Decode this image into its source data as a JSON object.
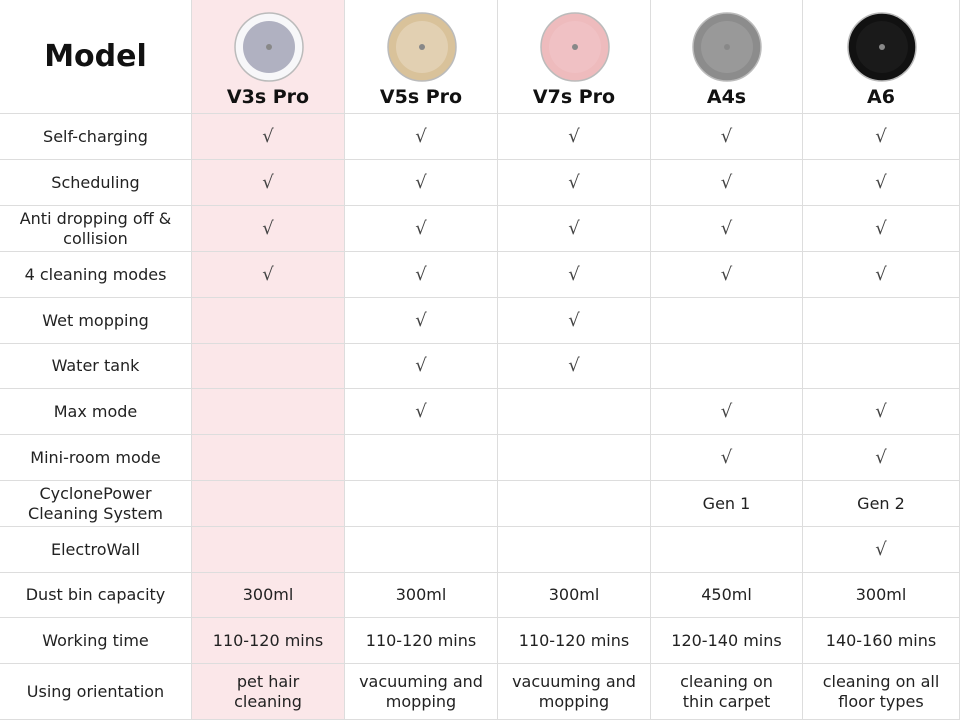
{
  "header": {
    "title": "Model",
    "models": [
      "V3s Pro",
      "V5s Pro",
      "V7s Pro",
      "A4s",
      "A6"
    ]
  },
  "table": {
    "rows": [
      {
        "label": "Self-charging",
        "cells": [
          "√",
          "√",
          "√",
          "√",
          "√"
        ]
      },
      {
        "label": "Scheduling",
        "cells": [
          "√",
          "√",
          "√",
          "√",
          "√"
        ]
      },
      {
        "label": "Anti dropping off & collision",
        "cells": [
          "√",
          "√",
          "√",
          "√",
          "√"
        ]
      },
      {
        "label": "4 cleaning modes",
        "cells": [
          "√",
          "√",
          "√",
          "√",
          "√"
        ]
      },
      {
        "label": "Wet mopping",
        "cells": [
          null,
          "√",
          "√",
          null,
          null
        ]
      },
      {
        "label": "Water tank",
        "cells": [
          null,
          "√",
          "√",
          null,
          null
        ]
      },
      {
        "label": "Max mode",
        "cells": [
          null,
          "√",
          null,
          "√",
          "√"
        ]
      },
      {
        "label": "Mini-room mode",
        "cells": [
          null,
          null,
          null,
          "√",
          "√"
        ]
      },
      {
        "label": "CyclonePower Cleaning System",
        "cells": [
          null,
          null,
          null,
          "Gen 1",
          "Gen 2"
        ]
      },
      {
        "label": "ElectroWall",
        "cells": [
          null,
          null,
          null,
          null,
          "√"
        ]
      },
      {
        "label": "Dust bin capacity",
        "cells": [
          "300ml",
          "300ml",
          "300ml",
          "450ml",
          "300ml"
        ]
      },
      {
        "label": "Working time",
        "cells": [
          "110-120 mins",
          "110-120 mins",
          "110-120 mins",
          "120-140 mins",
          "140-160 mins"
        ]
      },
      {
        "label": "Using orientation",
        "cells": [
          "pet hair cleaning",
          "vacuuming and mopping",
          "vacuuming and mopping",
          "cleaning on thin carpet",
          "cleaning on all floor types"
        ]
      }
    ]
  }
}
